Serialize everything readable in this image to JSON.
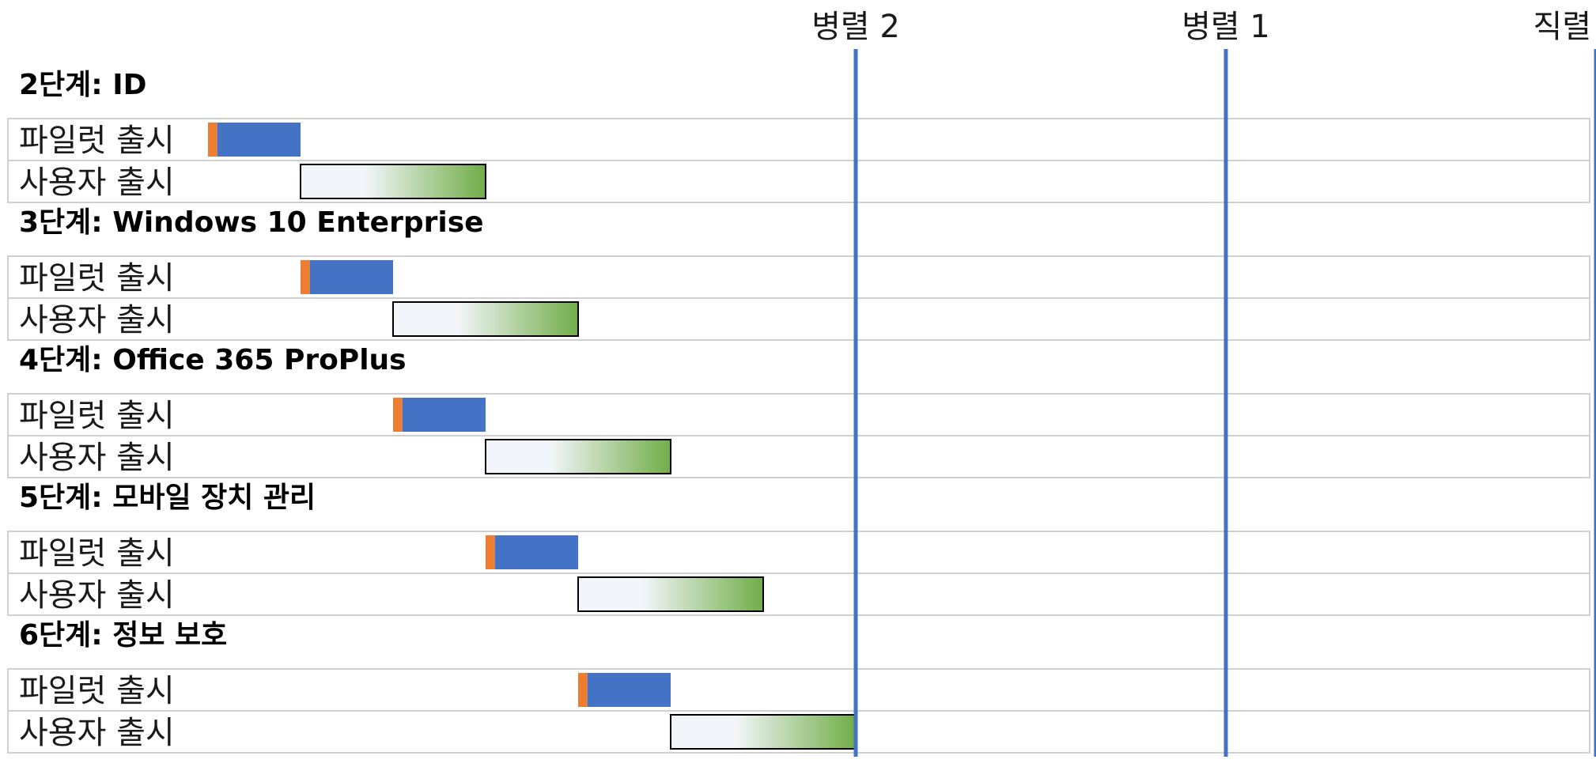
{
  "chart_data": {
    "type": "gantt",
    "milestones": [
      {
        "name": "병렬 2",
        "position": 7
      },
      {
        "name": "병렬 1",
        "position": 11
      },
      {
        "name": "직렬",
        "position": 15
      }
    ],
    "phases": [
      {
        "title": "2단계: ID",
        "tasks": [
          {
            "label": "파일럿 출시",
            "kind": "pilot",
            "start": 0,
            "prep": 0.1,
            "end": 1
          },
          {
            "label": "사용자 출시",
            "kind": "user",
            "start": 1,
            "end": 3
          }
        ]
      },
      {
        "title": "3단계: Windows 10 Enterprise",
        "tasks": [
          {
            "label": "파일럿 출시",
            "kind": "pilot",
            "start": 1,
            "prep": 0.1,
            "end": 2
          },
          {
            "label": "사용자 출시",
            "kind": "user",
            "start": 2,
            "end": 4
          }
        ]
      },
      {
        "title": "4단계: Office 365 ProPlus",
        "tasks": [
          {
            "label": "파일럿 출시",
            "kind": "pilot",
            "start": 2,
            "prep": 0.1,
            "end": 3
          },
          {
            "label": "사용자 출시",
            "kind": "user",
            "start": 3,
            "end": 5
          }
        ]
      },
      {
        "title": "5단계: 모바일 장치 관리",
        "tasks": [
          {
            "label": "파일럿 출시",
            "kind": "pilot",
            "start": 3,
            "prep": 0.1,
            "end": 4
          },
          {
            "label": "사용자 출시",
            "kind": "user",
            "start": 4,
            "end": 6
          }
        ]
      },
      {
        "title": "6단계: 정보 보호",
        "tasks": [
          {
            "label": "파일럿 출시",
            "kind": "pilot",
            "start": 4,
            "prep": 0.1,
            "end": 5
          },
          {
            "label": "사용자 출시",
            "kind": "user",
            "start": 5,
            "end": 7
          }
        ]
      }
    ],
    "colors": {
      "prep": "#ed7d31",
      "pilot": "#4472c4",
      "user_start": "#f2f5f9",
      "user_end": "#70ad47",
      "milestone_line": "#4472c4",
      "row_border": "#d0d0d0"
    }
  }
}
